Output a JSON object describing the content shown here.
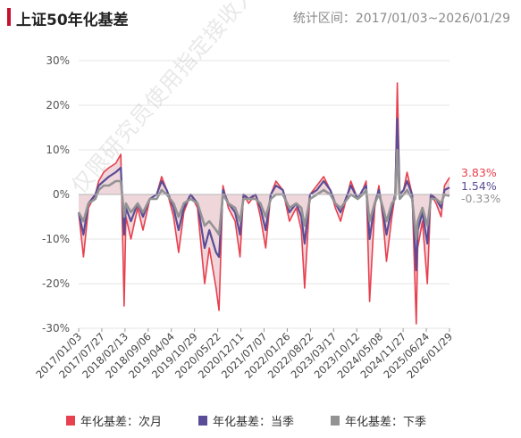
{
  "header": {
    "title": "上证50年化基差",
    "range_text": "统计区间：2017/01/03~2026/01/29"
  },
  "watermark": "仅限研究员使用指定接收人使用",
  "chart_data": {
    "type": "line",
    "title": "上证50年化基差",
    "ylim": [
      -30,
      30
    ],
    "yticks": [
      "30%",
      "20%",
      "10%",
      "0%",
      "-10%",
      "-20%",
      "-30%"
    ],
    "ytick_values": [
      30,
      20,
      10,
      0,
      -10,
      -20,
      -30
    ],
    "x_tick_labels": [
      "2017/01/03",
      "2017/07/27",
      "2018/02/13",
      "2018/09/06",
      "2019/04/04",
      "2019/10/29",
      "2020/05/22",
      "2020/12/11",
      "2021/07/07",
      "2022/01/26",
      "2022/08/22",
      "2023/03/17",
      "2023/10/12",
      "2024/05/08",
      "2024/11/27",
      "2025/06/24",
      "2026/01/29"
    ],
    "x_range": [
      "2017/01/03",
      "2026/01/29"
    ],
    "grid": "horizontal",
    "legend_position": "bottom",
    "series": [
      {
        "name": "年化基差：次月",
        "color": "#e8404e",
        "last_label": "3.83%",
        "points": [
          [
            "2017/01/03",
            -4
          ],
          [
            "2017/02/15",
            -14
          ],
          [
            "2017/04/01",
            -3
          ],
          [
            "2017/06/01",
            0
          ],
          [
            "2017/07/01",
            3
          ],
          [
            "2017/08/15",
            5
          ],
          [
            "2017/10/01",
            6
          ],
          [
            "2017/12/01",
            7
          ],
          [
            "2018/01/15",
            9
          ],
          [
            "2018/02/13",
            -25
          ],
          [
            "2018/03/01",
            -5
          ],
          [
            "2018/04/15",
            -10
          ],
          [
            "2018/06/15",
            -3
          ],
          [
            "2018/08/01",
            -8
          ],
          [
            "2018/10/01",
            -1
          ],
          [
            "2018/12/01",
            0
          ],
          [
            "2019/01/15",
            4
          ],
          [
            "2019/03/01",
            1
          ],
          [
            "2019/05/01",
            -5
          ],
          [
            "2019/06/15",
            -13
          ],
          [
            "2019/08/01",
            -4
          ],
          [
            "2019/10/01",
            0
          ],
          [
            "2019/12/01",
            -3
          ],
          [
            "2020/02/03",
            -20
          ],
          [
            "2020/03/15",
            -12
          ],
          [
            "2020/05/15",
            -21
          ],
          [
            "2020/06/10",
            -26
          ],
          [
            "2020/07/15",
            2
          ],
          [
            "2020/09/01",
            -3
          ],
          [
            "2020/11/01",
            -6
          ],
          [
            "2020/12/15",
            -14
          ],
          [
            "2021/01/15",
            0
          ],
          [
            "2021/03/01",
            -2
          ],
          [
            "2021/05/01",
            0
          ],
          [
            "2021/06/15",
            -5
          ],
          [
            "2021/08/01",
            -12
          ],
          [
            "2021/09/15",
            0
          ],
          [
            "2021/11/01",
            3
          ],
          [
            "2022/01/01",
            1
          ],
          [
            "2022/03/01",
            -6
          ],
          [
            "2022/05/01",
            -3
          ],
          [
            "2022/06/15",
            -8
          ],
          [
            "2022/07/15",
            -21
          ],
          [
            "2022/09/01",
            0
          ],
          [
            "2022/11/01",
            2
          ],
          [
            "2023/01/01",
            4
          ],
          [
            "2023/03/01",
            1
          ],
          [
            "2023/04/15",
            -3
          ],
          [
            "2023/06/01",
            -6
          ],
          [
            "2023/08/01",
            0
          ],
          [
            "2023/09/01",
            3
          ],
          [
            "2023/11/01",
            -1
          ],
          [
            "2023/12/15",
            1
          ],
          [
            "2024/01/15",
            3
          ],
          [
            "2024/02/15",
            -24
          ],
          [
            "2024/04/01",
            -3
          ],
          [
            "2024/05/08",
            2
          ],
          [
            "2024/06/15",
            -6
          ],
          [
            "2024/07/15",
            -15
          ],
          [
            "2024/09/01",
            -5
          ],
          [
            "2024/10/01",
            0
          ],
          [
            "2024/10/20",
            25
          ],
          [
            "2024/11/10",
            0
          ],
          [
            "2024/12/15",
            1
          ],
          [
            "2025/01/15",
            5
          ],
          [
            "2025/03/01",
            0
          ],
          [
            "2025/04/07",
            -29
          ],
          [
            "2025/04/20",
            -12
          ],
          [
            "2025/06/01",
            -6
          ],
          [
            "2025/07/15",
            -20
          ],
          [
            "2025/08/15",
            0
          ],
          [
            "2025/10/01",
            -2
          ],
          [
            "2025/11/15",
            -5
          ],
          [
            "2025/12/15",
            2
          ],
          [
            "2026/01/29",
            3.83
          ]
        ]
      },
      {
        "name": "年化基差：当季",
        "color": "#5a4c96",
        "last_label": "1.54%",
        "points": [
          [
            "2017/01/03",
            -4
          ],
          [
            "2017/02/15",
            -9
          ],
          [
            "2017/04/01",
            -2
          ],
          [
            "2017/06/01",
            0
          ],
          [
            "2017/07/01",
            2
          ],
          [
            "2017/08/15",
            3
          ],
          [
            "2017/10/01",
            4
          ],
          [
            "2017/12/01",
            5
          ],
          [
            "2018/01/15",
            6
          ],
          [
            "2018/02/13",
            -9
          ],
          [
            "2018/03/01",
            -3
          ],
          [
            "2018/04/15",
            -6
          ],
          [
            "2018/06/15",
            -2
          ],
          [
            "2018/08/01",
            -5
          ],
          [
            "2018/10/01",
            -1
          ],
          [
            "2018/12/01",
            0
          ],
          [
            "2019/01/15",
            3
          ],
          [
            "2019/03/01",
            1
          ],
          [
            "2019/05/01",
            -3
          ],
          [
            "2019/06/15",
            -8
          ],
          [
            "2019/08/01",
            -3
          ],
          [
            "2019/10/01",
            0
          ],
          [
            "2019/12/01",
            -2
          ],
          [
            "2020/02/03",
            -12
          ],
          [
            "2020/03/15",
            -8
          ],
          [
            "2020/05/15",
            -13
          ],
          [
            "2020/06/10",
            -14
          ],
          [
            "2020/07/15",
            1
          ],
          [
            "2020/09/01",
            -2
          ],
          [
            "2020/11/01",
            -4
          ],
          [
            "2020/12/15",
            -9
          ],
          [
            "2021/01/15",
            0
          ],
          [
            "2021/03/01",
            -1
          ],
          [
            "2021/05/01",
            0
          ],
          [
            "2021/06/15",
            -3
          ],
          [
            "2021/08/01",
            -8
          ],
          [
            "2021/09/15",
            0
          ],
          [
            "2021/11/01",
            2
          ],
          [
            "2022/01/01",
            1
          ],
          [
            "2022/03/01",
            -4
          ],
          [
            "2022/05/01",
            -2
          ],
          [
            "2022/06/15",
            -5
          ],
          [
            "2022/07/15",
            -11
          ],
          [
            "2022/09/01",
            0
          ],
          [
            "2022/11/01",
            1
          ],
          [
            "2023/01/01",
            3
          ],
          [
            "2023/03/01",
            1
          ],
          [
            "2023/04/15",
            -2
          ],
          [
            "2023/06/01",
            -4
          ],
          [
            "2023/08/01",
            0
          ],
          [
            "2023/09/01",
            2
          ],
          [
            "2023/11/01",
            -1
          ],
          [
            "2023/12/15",
            1
          ],
          [
            "2024/01/15",
            2
          ],
          [
            "2024/02/15",
            -10
          ],
          [
            "2024/04/01",
            -2
          ],
          [
            "2024/05/08",
            1
          ],
          [
            "2024/06/15",
            -4
          ],
          [
            "2024/07/15",
            -9
          ],
          [
            "2024/09/01",
            -3
          ],
          [
            "2024/10/01",
            0
          ],
          [
            "2024/10/20",
            17
          ],
          [
            "2024/11/10",
            0
          ],
          [
            "2024/12/15",
            1
          ],
          [
            "2025/01/15",
            3
          ],
          [
            "2025/03/01",
            0
          ],
          [
            "2025/04/07",
            -17
          ],
          [
            "2025/04/20",
            -8
          ],
          [
            "2025/06/01",
            -4
          ],
          [
            "2025/07/15",
            -11
          ],
          [
            "2025/08/15",
            0
          ],
          [
            "2025/10/01",
            -1
          ],
          [
            "2025/11/15",
            -3
          ],
          [
            "2025/12/15",
            1
          ],
          [
            "2026/01/29",
            1.54
          ]
        ]
      },
      {
        "name": "年化基差：下季",
        "color": "#939393",
        "last_label": "-0.33%",
        "points": [
          [
            "2017/01/03",
            -4
          ],
          [
            "2017/02/15",
            -6
          ],
          [
            "2017/04/01",
            -2
          ],
          [
            "2017/06/01",
            -1
          ],
          [
            "2017/07/01",
            1
          ],
          [
            "2017/08/15",
            2
          ],
          [
            "2017/10/01",
            2
          ],
          [
            "2017/12/01",
            3
          ],
          [
            "2018/01/15",
            3
          ],
          [
            "2018/02/13",
            -5
          ],
          [
            "2018/03/01",
            -2
          ],
          [
            "2018/04/15",
            -4
          ],
          [
            "2018/06/15",
            -2
          ],
          [
            "2018/08/01",
            -4
          ],
          [
            "2018/10/01",
            -1
          ],
          [
            "2018/12/01",
            -1
          ],
          [
            "2019/01/15",
            1
          ],
          [
            "2019/03/01",
            0
          ],
          [
            "2019/05/01",
            -2
          ],
          [
            "2019/06/15",
            -5
          ],
          [
            "2019/08/01",
            -2
          ],
          [
            "2019/10/01",
            -1
          ],
          [
            "2019/12/01",
            -2
          ],
          [
            "2020/02/03",
            -7
          ],
          [
            "2020/03/15",
            -6
          ],
          [
            "2020/05/15",
            -8
          ],
          [
            "2020/06/10",
            -9
          ],
          [
            "2020/07/15",
            0
          ],
          [
            "2020/09/01",
            -2
          ],
          [
            "2020/11/01",
            -3
          ],
          [
            "2020/12/15",
            -6
          ],
          [
            "2021/01/15",
            -1
          ],
          [
            "2021/03/01",
            -1
          ],
          [
            "2021/05/01",
            -1
          ],
          [
            "2021/06/15",
            -2
          ],
          [
            "2021/08/01",
            -5
          ],
          [
            "2021/09/15",
            -1
          ],
          [
            "2021/11/01",
            0
          ],
          [
            "2022/01/01",
            0
          ],
          [
            "2022/03/01",
            -3
          ],
          [
            "2022/05/01",
            -2
          ],
          [
            "2022/06/15",
            -3
          ],
          [
            "2022/07/15",
            -7
          ],
          [
            "2022/09/01",
            -1
          ],
          [
            "2022/11/01",
            0
          ],
          [
            "2023/01/01",
            1
          ],
          [
            "2023/03/01",
            0
          ],
          [
            "2023/04/15",
            -2
          ],
          [
            "2023/06/01",
            -3
          ],
          [
            "2023/08/01",
            -1
          ],
          [
            "2023/09/01",
            0
          ],
          [
            "2023/11/01",
            -1
          ],
          [
            "2023/12/15",
            0
          ],
          [
            "2024/01/15",
            1
          ],
          [
            "2024/02/15",
            -6
          ],
          [
            "2024/04/01",
            -2
          ],
          [
            "2024/05/08",
            0
          ],
          [
            "2024/06/15",
            -3
          ],
          [
            "2024/07/15",
            -6
          ],
          [
            "2024/09/01",
            -2
          ],
          [
            "2024/10/01",
            -1
          ],
          [
            "2024/10/20",
            10
          ],
          [
            "2024/11/10",
            -1
          ],
          [
            "2024/12/15",
            0
          ],
          [
            "2025/01/15",
            1
          ],
          [
            "2025/03/01",
            -1
          ],
          [
            "2025/04/07",
            -10
          ],
          [
            "2025/04/20",
            -6
          ],
          [
            "2025/06/01",
            -3
          ],
          [
            "2025/07/15",
            -7
          ],
          [
            "2025/08/15",
            -1
          ],
          [
            "2025/10/01",
            -1
          ],
          [
            "2025/11/15",
            -2
          ],
          [
            "2025/12/15",
            0
          ],
          [
            "2026/01/29",
            -0.33
          ]
        ]
      }
    ],
    "shaded_area": {
      "series": "年化基差：次月",
      "fill": "#e9c8cf"
    }
  }
}
